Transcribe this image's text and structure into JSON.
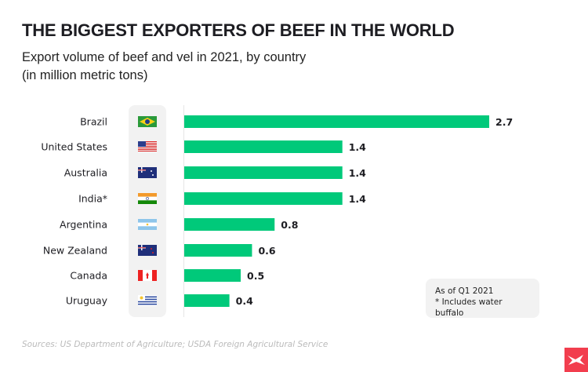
{
  "title": "THE BIGGEST EXPORTERS OF BEEF IN THE WORLD",
  "subtitle_line1": "Export volume of beef and vel in 2021, by country",
  "subtitle_line2": "(in million metric tons)",
  "note_line1": "As of Q1 2021",
  "note_line2": "* Includes water buffalo",
  "source": "Sources: US Department of Agriculture; USDA Foreign Agricultural Service",
  "bar_color": "#00c97a",
  "logo_color": "#f23e4e",
  "chart_data": {
    "type": "bar",
    "orientation": "horizontal",
    "categories": [
      "Brazil",
      "United States",
      "Australia",
      "India*",
      "Argentina",
      "New Zealand",
      "Canada",
      "Uruguay"
    ],
    "flags": [
      "brazil-flag",
      "usa-flag",
      "australia-flag",
      "india-flag",
      "argentina-flag",
      "new-zealand-flag",
      "canada-flag",
      "uruguay-flag"
    ],
    "values": [
      2.7,
      1.4,
      1.4,
      1.4,
      0.8,
      0.6,
      0.5,
      0.4
    ],
    "labels": [
      "2.7",
      "1.4",
      "1.4",
      "1.4",
      "0.8",
      "0.6",
      "0.5",
      "0.4"
    ],
    "xlim": [
      0,
      2.7
    ],
    "grid": false
  }
}
